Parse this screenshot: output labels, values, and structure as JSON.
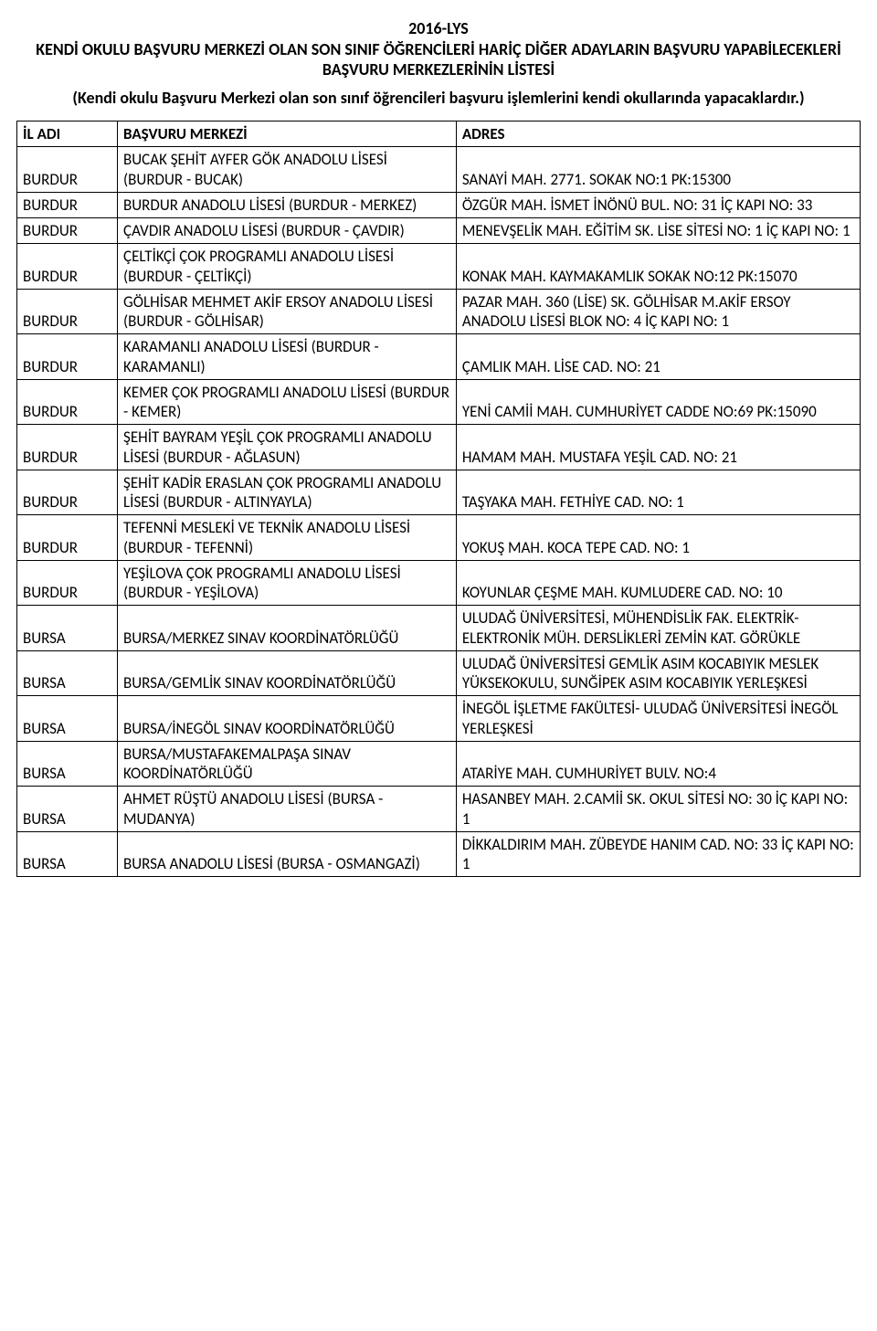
{
  "header": {
    "line1": "2016-LYS",
    "line2": "KENDİ OKULU BAŞVURU MERKEZİ OLAN SON SINIF ÖĞRENCİLERİ HARİÇ DİĞER ADAYLARIN BAŞVURU YAPABİLECEKLERİ BAŞVURU MERKEZLERİNİN LİSTESİ",
    "subtitle": "(Kendi okulu Başvuru Merkezi olan son sınıf öğrencileri başvuru işlemlerini kendi okullarında yapacaklardır.)"
  },
  "columns": {
    "il": "İL ADI",
    "merkez": "BAŞVURU MERKEZİ",
    "adres": "ADRES"
  },
  "rows": [
    {
      "il": "BURDUR",
      "merkez": "BUCAK ŞEHİT AYFER GÖK ANADOLU LİSESİ (BURDUR - BUCAK)",
      "adres": "SANAYİ MAH. 2771. SOKAK NO:1 PK:15300"
    },
    {
      "il": "BURDUR",
      "merkez": "BURDUR ANADOLU LİSESİ (BURDUR - MERKEZ)",
      "adres": "ÖZGÜR MAH. İSMET İNÖNÜ BUL.  NO: 31  İÇ KAPI NO: 33"
    },
    {
      "il": "BURDUR",
      "merkez": "ÇAVDIR ANADOLU LİSESİ (BURDUR - ÇAVDIR)",
      "adres": "MENEVŞELİK MAH. EĞİTİM SK. LİSE SİTESİ  NO: 1  İÇ KAPI NO: 1"
    },
    {
      "il": "BURDUR",
      "merkez": "ÇELTİKÇİ ÇOK PROGRAMLI ANADOLU LİSESİ (BURDUR - ÇELTİKÇİ)",
      "adres": "KONAK MAH. KAYMAKAMLIK SOKAK NO:12 PK:15070"
    },
    {
      "il": "BURDUR",
      "merkez": "GÖLHİSAR MEHMET AKİF ERSOY ANADOLU LİSESİ (BURDUR - GÖLHİSAR)",
      "adres": "PAZAR MAH. 360 (LİSE) SK. GÖLHİSAR M.AKİF ERSOY ANADOLU LİSESİ BLOK  NO: 4  İÇ KAPI NO: 1"
    },
    {
      "il": "BURDUR",
      "merkez": "KARAMANLI ANADOLU LİSESİ (BURDUR - KARAMANLI)",
      "adres": "ÇAMLIK MAH. LİSE CAD.  NO: 21"
    },
    {
      "il": "BURDUR",
      "merkez": "KEMER ÇOK PROGRAMLI ANADOLU LİSESİ (BURDUR - KEMER)",
      "adres": "YENİ CAMİİ MAH. CUMHURİYET CADDE NO:69 PK:15090"
    },
    {
      "il": "BURDUR",
      "merkez": "ŞEHİT BAYRAM YEŞİL ÇOK PROGRAMLI ANADOLU LİSESİ (BURDUR - AĞLASUN)",
      "adres": "HAMAM MAH. MUSTAFA YEŞİL CAD.  NO: 21"
    },
    {
      "il": "BURDUR",
      "merkez": "ŞEHİT KADİR ERASLAN ÇOK PROGRAMLI ANADOLU LİSESİ (BURDUR - ALTINYAYLA)",
      "adres": "TAŞYAKA MAH. FETHİYE CAD.  NO: 1"
    },
    {
      "il": "BURDUR",
      "merkez": "TEFENNİ MESLEKİ VE TEKNİK ANADOLU LİSESİ (BURDUR - TEFENNİ)",
      "adres": "YOKUŞ MAH. KOCA TEPE CAD.  NO: 1"
    },
    {
      "il": "BURDUR",
      "merkez": "YEŞİLOVA ÇOK PROGRAMLI ANADOLU LİSESİ (BURDUR - YEŞİLOVA)",
      "adres": "KOYUNLAR ÇEŞME MAH. KUMLUDERE CAD.  NO: 10"
    },
    {
      "il": "BURSA",
      "merkez": "BURSA/MERKEZ SINAV KOORDİNATÖRLÜĞÜ",
      "adres": "ULUDAĞ ÜNİVERSİTESİ, MÜHENDİSLİK FAK. ELEKTRİK-ELEKTRONİK MÜH. DERSLİKLERİ ZEMİN KAT. GÖRÜKLE"
    },
    {
      "il": "BURSA",
      "merkez": "BURSA/GEMLİK SINAV KOORDİNATÖRLÜĞÜ",
      "adres": "ULUDAĞ ÜNİVERSİTESİ GEMLİK ASIM KOCABIYIK MESLEK YÜKSEKOKULU, SUNĞİPEK  ASIM KOCABIYIK YERLEŞKESİ"
    },
    {
      "il": "BURSA",
      "merkez": "BURSA/İNEGÖL SINAV KOORDİNATÖRLÜĞÜ",
      "adres": "İNEGÖL İŞLETME FAKÜLTESİ- ULUDAĞ ÜNİVERSİTESİ İNEGÖL YERLEŞKESİ"
    },
    {
      "il": "BURSA",
      "merkez": "BURSA/MUSTAFAKEMALPAŞA SINAV KOORDİNATÖRLÜĞÜ",
      "adres": "ATARİYE MAH. CUMHURİYET  BULV. NO:4"
    },
    {
      "il": "BURSA",
      "merkez": "AHMET RÜŞTÜ ANADOLU LİSESİ (BURSA - MUDANYA)",
      "adres": "HASANBEY MAH. 2.CAMİİ SK. OKUL SİTESİ  NO: 30  İÇ KAPI NO: 1"
    },
    {
      "il": "BURSA",
      "merkez": "BURSA ANADOLU LİSESİ (BURSA - OSMANGAZİ)",
      "adres": "DİKKALDIRIM MAH. ZÜBEYDE HANIM CAD.  NO: 33  İÇ KAPI NO: 1"
    }
  ]
}
